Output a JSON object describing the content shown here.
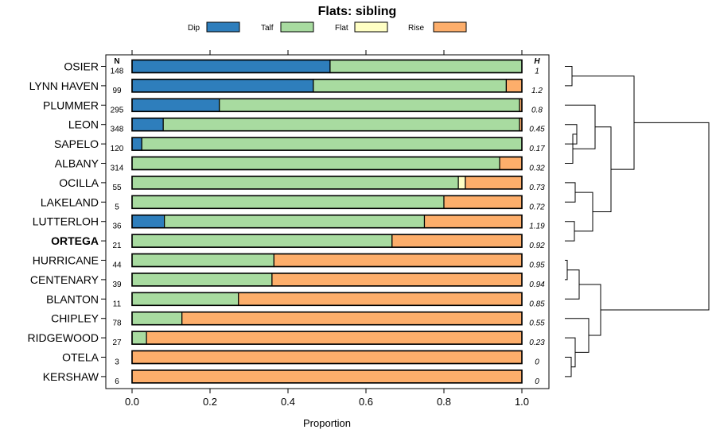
{
  "chart_data": {
    "type": "bar",
    "orientation": "horizontal",
    "stacked": true,
    "title": "Flats: sibling",
    "xlabel": "Proportion",
    "xlim": [
      0,
      1
    ],
    "x_ticks": [
      "0.0",
      "0.2",
      "0.4",
      "0.6",
      "0.8",
      "1.0"
    ],
    "n_header": "N",
    "h_header": "H",
    "legend": [
      {
        "name": "Dip",
        "color": "#2e7ebc"
      },
      {
        "name": "Talf",
        "color": "#a8dba0"
      },
      {
        "name": "Flat",
        "color": "#ffffc4"
      },
      {
        "name": "Rise",
        "color": "#fdae6b"
      }
    ],
    "highlight": "ORTEGA",
    "rows": [
      {
        "name": "OSIER",
        "n": "148",
        "h": "1",
        "values": [
          0.508,
          0.492,
          0,
          0
        ]
      },
      {
        "name": "LYNN HAVEN",
        "n": "99",
        "h": "1.2",
        "values": [
          0.465,
          0.495,
          0,
          0.04
        ]
      },
      {
        "name": "PLUMMER",
        "n": "295",
        "h": "0.8",
        "values": [
          0.224,
          0.77,
          0,
          0.006
        ]
      },
      {
        "name": "LEON",
        "n": "348",
        "h": "0.45",
        "values": [
          0.08,
          0.914,
          0,
          0.006
        ]
      },
      {
        "name": "SAPELO",
        "n": "120",
        "h": "0.17",
        "values": [
          0.025,
          0.975,
          0,
          0
        ]
      },
      {
        "name": "ALBANY",
        "n": "314",
        "h": "0.32",
        "values": [
          0,
          0.943,
          0,
          0.057
        ]
      },
      {
        "name": "OCILLA",
        "n": "55",
        "h": "0.73",
        "values": [
          0,
          0.837,
          0.018,
          0.145
        ]
      },
      {
        "name": "LAKELAND",
        "n": "5",
        "h": "0.72",
        "values": [
          0,
          0.8,
          0,
          0.2
        ]
      },
      {
        "name": "LUTTERLOH",
        "n": "36",
        "h": "1.19",
        "values": [
          0.083,
          0.667,
          0,
          0.25
        ]
      },
      {
        "name": "ORTEGA",
        "n": "21",
        "h": "0.92",
        "values": [
          0,
          0.667,
          0,
          0.333
        ]
      },
      {
        "name": "HURRICANE",
        "n": "44",
        "h": "0.95",
        "values": [
          0,
          0.364,
          0,
          0.636
        ]
      },
      {
        "name": "CENTENARY",
        "n": "39",
        "h": "0.94",
        "values": [
          0,
          0.359,
          0,
          0.641
        ]
      },
      {
        "name": "BLANTON",
        "n": "11",
        "h": "0.85",
        "values": [
          0,
          0.273,
          0,
          0.727
        ]
      },
      {
        "name": "CHIPLEY",
        "n": "78",
        "h": "0.55",
        "values": [
          0,
          0.128,
          0,
          0.872
        ]
      },
      {
        "name": "RIDGEWOOD",
        "n": "27",
        "h": "0.23",
        "values": [
          0,
          0.037,
          0,
          0.963
        ]
      },
      {
        "name": "OTELA",
        "n": "3",
        "h": "0",
        "values": [
          0,
          0,
          0,
          1
        ]
      },
      {
        "name": "KERSHAW",
        "n": "6",
        "h": "0",
        "values": [
          0,
          0,
          0,
          1
        ]
      }
    ]
  }
}
